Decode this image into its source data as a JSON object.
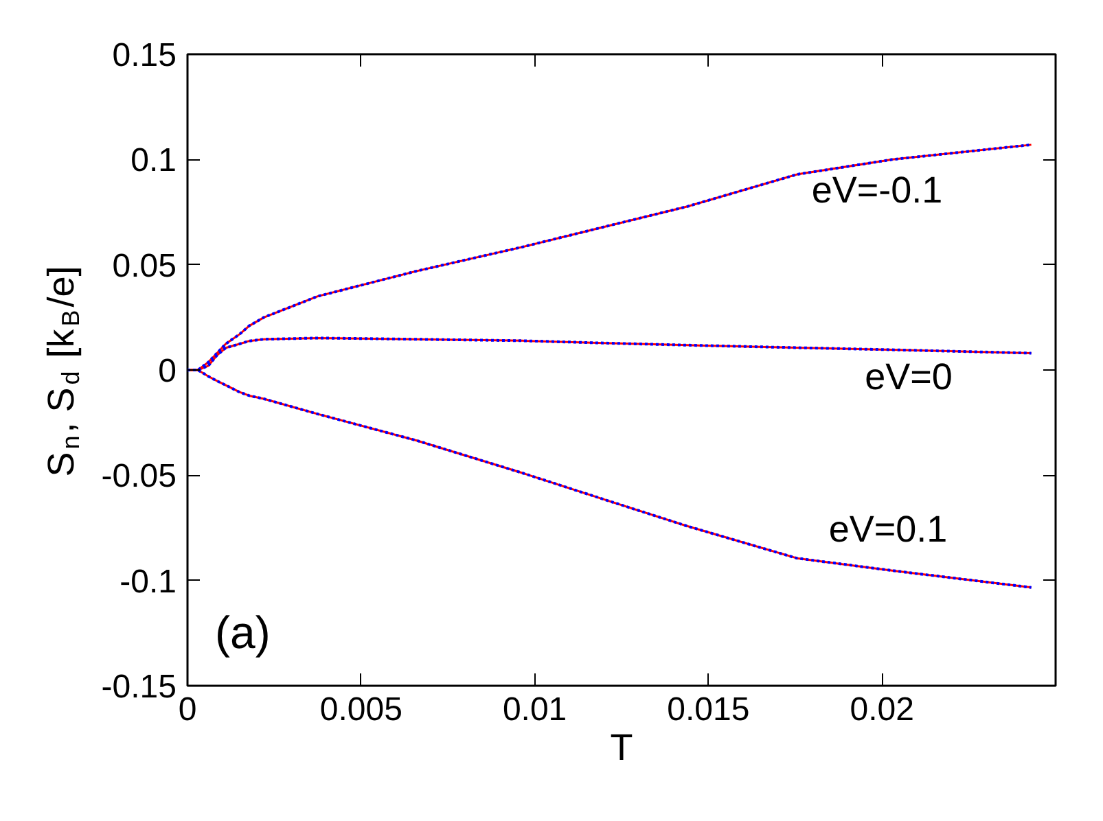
{
  "chart_data": {
    "type": "line",
    "xlabel": "T",
    "ylabel": "S$_{n}$, S$_{d}$ [k$_{B}$/e]",
    "xlim": [
      0,
      0.025
    ],
    "ylim": [
      -0.15,
      0.15
    ],
    "xticks": [
      0,
      0.005,
      0.01,
      0.015,
      0.02
    ],
    "yticks": [
      -0.15,
      -0.1,
      -0.05,
      0,
      0.05,
      0.1,
      0.15
    ],
    "grid": false,
    "x": [
      0,
      0.0003,
      0.0006,
      0.00085,
      0.0011,
      0.0015,
      0.00178,
      0.0022,
      0.00375,
      0.0066,
      0.00966,
      0.012,
      0.0144,
      0.01755,
      0.0203,
      0.0243
    ],
    "series": [
      {
        "color": "#ff0000",
        "line_style": "solid",
        "values": [
          0,
          0,
          0.0037,
          0.008,
          0.0124,
          0.017,
          0.021,
          0.025,
          0.035,
          0.047,
          0.0585,
          0.068,
          0.0777,
          0.0929,
          0.1,
          0.107
        ]
      },
      {
        "color": "#0000ff",
        "line_style": "dotted",
        "values": [
          0,
          0,
          0.0037,
          0.008,
          0.0124,
          0.017,
          0.021,
          0.025,
          0.035,
          0.047,
          0.0585,
          0.068,
          0.0777,
          0.0929,
          0.1,
          0.107
        ]
      },
      {
        "color": "#ff0000",
        "line_style": "solid",
        "values": [
          0,
          0,
          0.002,
          0.007,
          0.0105,
          0.0124,
          0.0138,
          0.0146,
          0.0152,
          0.0146,
          0.0139,
          0.0128,
          0.0118,
          0.0106,
          0.0096,
          0.008
        ]
      },
      {
        "color": "#0000ff",
        "line_style": "dotted",
        "values": [
          0,
          0,
          0.002,
          0.007,
          0.0105,
          0.0124,
          0.0138,
          0.0146,
          0.0152,
          0.0146,
          0.0139,
          0.0128,
          0.0118,
          0.0106,
          0.0096,
          0.008
        ]
      },
      {
        "color": "#ff0000",
        "line_style": "solid",
        "values": [
          0,
          0,
          -0.003,
          -0.0052,
          -0.0072,
          -0.0105,
          -0.0122,
          -0.0137,
          -0.0209,
          -0.0335,
          -0.049,
          -0.0615,
          -0.0742,
          -0.0894,
          -0.0953,
          -0.1033
        ]
      },
      {
        "color": "#0000ff",
        "line_style": "dotted",
        "values": [
          0,
          0,
          -0.003,
          -0.0052,
          -0.0072,
          -0.0105,
          -0.0122,
          -0.0137,
          -0.0209,
          -0.0335,
          -0.049,
          -0.0615,
          -0.0742,
          -0.0894,
          -0.0953,
          -0.1033
        ]
      }
    ],
    "annotations": [
      "eV=-0.1",
      "eV=0",
      "eV=0.1",
      "(a)"
    ]
  }
}
